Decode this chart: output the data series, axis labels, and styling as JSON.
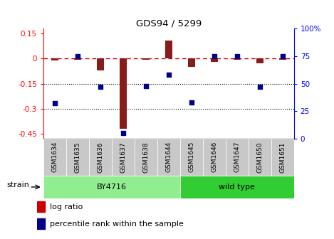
{
  "title": "GDS94 / 5299",
  "samples": [
    "GSM1634",
    "GSM1635",
    "GSM1636",
    "GSM1637",
    "GSM1638",
    "GSM1644",
    "GSM1645",
    "GSM1646",
    "GSM1647",
    "GSM1650",
    "GSM1651"
  ],
  "log_ratio": [
    -0.01,
    -0.005,
    -0.07,
    -0.42,
    -0.005,
    0.11,
    -0.05,
    -0.02,
    -0.005,
    -0.03,
    -0.005
  ],
  "percentile_rank": [
    32,
    75,
    47,
    5,
    48,
    58,
    33,
    75,
    75,
    47,
    75
  ],
  "n_by4716": 6,
  "n_wild_type": 5,
  "ylim_left": [
    -0.48,
    0.18
  ],
  "ylim_right": [
    0,
    100
  ],
  "yticks_left": [
    0.15,
    0.0,
    -0.15,
    -0.3,
    -0.45
  ],
  "yticks_right": [
    100,
    75,
    50,
    25,
    0
  ],
  "bar_color": "#8B1A1A",
  "dot_color": "#00008B",
  "by4716_color_light": "#C8F0C8",
  "by4716_color_dark": "#4CBB47",
  "wild_type_color_light": "#C8F0C8",
  "wild_type_color_dark": "#4CBB47",
  "strain_label": "strain",
  "by4716_label": "BY4716",
  "wild_type_label": "wild type",
  "legend_log_color": "#CC0000",
  "legend_dot_color": "#00008B"
}
